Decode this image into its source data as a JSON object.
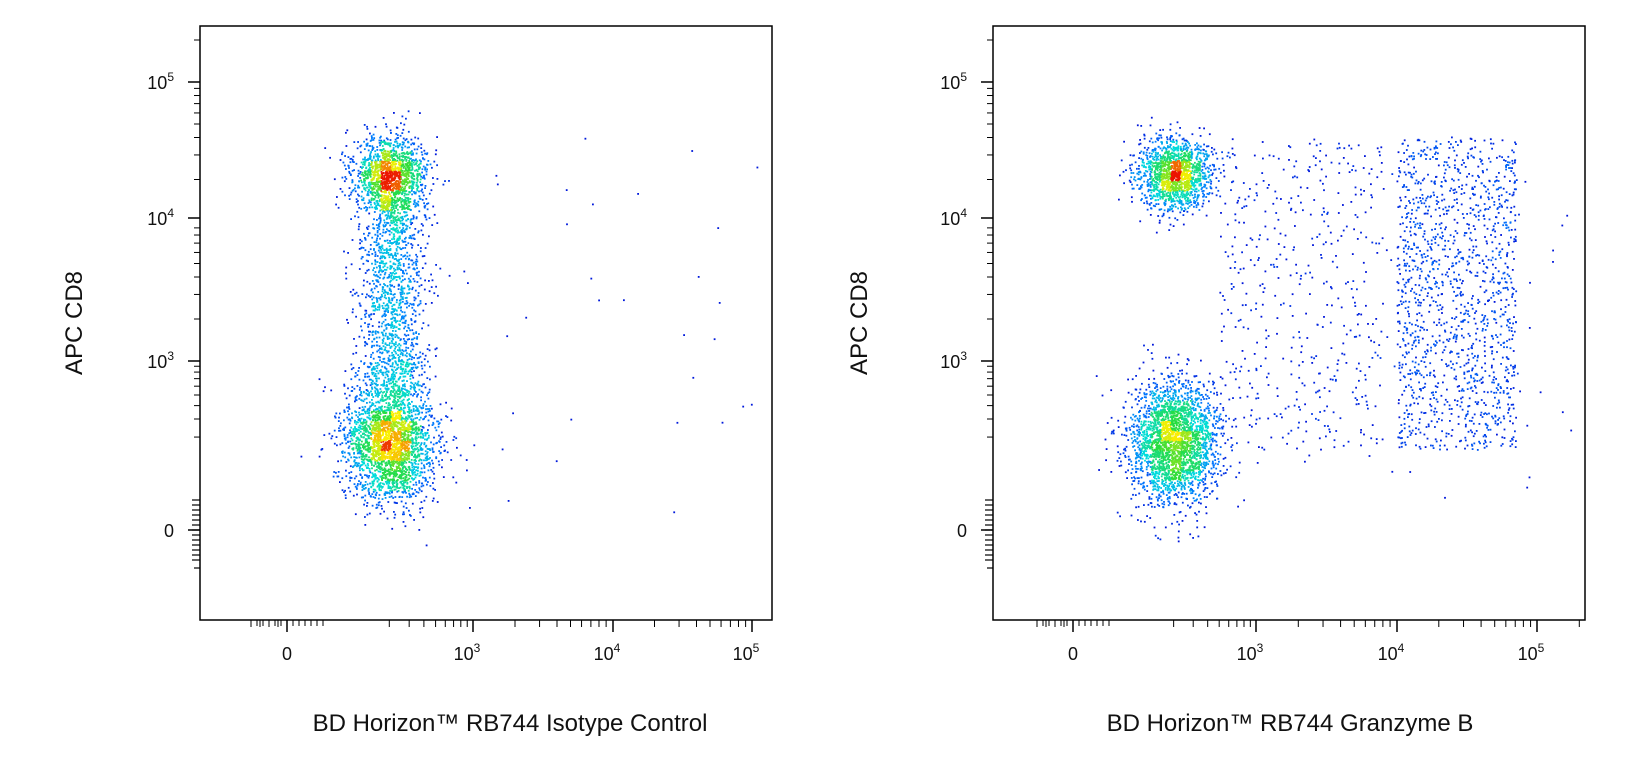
{
  "chart_data": [
    {
      "type": "scatter",
      "title": "",
      "xlabel": "BD Horizon™ RB744 Isotype Control",
      "ylabel": "APC CD8",
      "x_scale": "biexponential",
      "y_scale": "biexponential",
      "x_ticks": [
        {
          "value": 0,
          "base": "0",
          "exp": ""
        },
        {
          "value": 1000,
          "base": "10",
          "exp": "3"
        },
        {
          "value": 10000,
          "base": "10",
          "exp": "4"
        },
        {
          "value": 100000,
          "base": "10",
          "exp": "5"
        }
      ],
      "y_ticks": [
        {
          "value": 0,
          "base": "0",
          "exp": ""
        },
        {
          "value": 1000,
          "base": "10",
          "exp": "3"
        },
        {
          "value": 10000,
          "base": "10",
          "exp": "4"
        },
        {
          "value": 100000,
          "base": "10",
          "exp": "5"
        }
      ],
      "grid": false,
      "legend": "none",
      "color_scale": "density (blue-cyan-green-yellow-red)",
      "populations": [
        {
          "x_center": 200,
          "y_center": 180,
          "relative_density": "very high"
        },
        {
          "x_center": 200,
          "y_center": 22000,
          "relative_density": "high"
        },
        {
          "x_range": [
            150,
            300
          ],
          "y_range": [
            500,
            15000
          ],
          "relative_density": "medium"
        }
      ]
    },
    {
      "type": "scatter",
      "title": "",
      "xlabel": "BD Horizon™ RB744 Granzyme B",
      "ylabel": "APC CD8",
      "x_scale": "biexponential",
      "y_scale": "biexponential",
      "x_ticks": [
        {
          "value": 0,
          "base": "0",
          "exp": ""
        },
        {
          "value": 1000,
          "base": "10",
          "exp": "3"
        },
        {
          "value": 10000,
          "base": "10",
          "exp": "4"
        },
        {
          "value": 100000,
          "base": "10",
          "exp": "5"
        }
      ],
      "y_ticks": [
        {
          "value": 0,
          "base": "0",
          "exp": ""
        },
        {
          "value": 1000,
          "base": "10",
          "exp": "3"
        },
        {
          "value": 10000,
          "base": "10",
          "exp": "4"
        },
        {
          "value": 100000,
          "base": "10",
          "exp": "5"
        }
      ],
      "grid": false,
      "legend": "none",
      "color_scale": "density (blue-cyan-green-yellow-red)",
      "populations": [
        {
          "x_center": 200,
          "y_center": 180,
          "relative_density": "very high"
        },
        {
          "x_center": 200,
          "y_center": 22000,
          "relative_density": "high"
        },
        {
          "x_range": [
            10000,
            70000
          ],
          "y_range": [
            150,
            40000
          ],
          "relative_density": "medium"
        },
        {
          "x_range": [
            500,
            8000
          ],
          "y_range": [
            150,
            40000
          ],
          "relative_density": "low"
        }
      ]
    }
  ]
}
